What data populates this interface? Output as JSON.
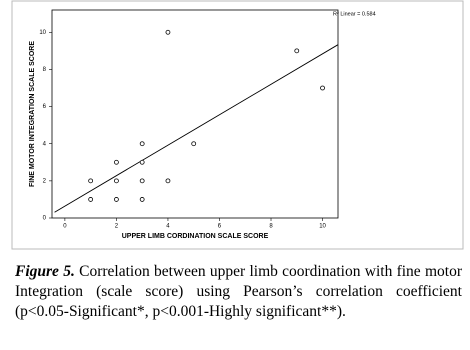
{
  "chart_data": {
    "type": "scatter",
    "x_label": "UPPER LIMB CORDINATION SCALE SCORE",
    "y_label": "FINE MOTOR INTEGRATION SCALE SCORE",
    "annotation": "R² Linear = 0.584",
    "x": [
      1,
      1,
      2,
      2,
      2,
      3,
      3,
      3,
      3,
      4,
      4,
      5,
      9,
      10
    ],
    "values": [
      1,
      2,
      1,
      2,
      3,
      1,
      2,
      3,
      4,
      2,
      10,
      4,
      9,
      7
    ],
    "color": "#000000",
    "fit": {
      "intercept": 0.64,
      "slope": 0.82
    },
    "xlim": [
      -0.5,
      10.6
    ],
    "xticks": [
      0,
      2,
      4,
      6,
      8,
      10
    ],
    "ylim": [
      0,
      11.2
    ],
    "yticks": [
      0,
      2,
      4,
      6,
      8,
      10
    ],
    "grid": false
  },
  "caption": {
    "label": "Figure 5.",
    "text": "Correlation between upper limb coordination with fine motor Integration (scale score) using Pearson’s correlation coefficient (p<0.05-Significant*, p<0.001-Highly significant**)."
  }
}
